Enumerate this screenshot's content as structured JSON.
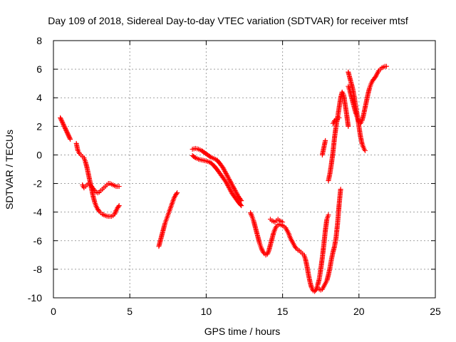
{
  "chart_data": {
    "type": "scatter",
    "title": "Day 109 of 2018, Sidereal Day-to-day VTEC variation (SDTVAR) for receiver mtsf",
    "xlabel": "GPS time / hours",
    "ylabel": "SDTVAR / TECUs",
    "xlim": [
      0,
      25
    ],
    "ylim": [
      -10,
      8
    ],
    "xticks": [
      "0",
      "5",
      "10",
      "15",
      "20",
      "25"
    ],
    "yticks": [
      "-10",
      "-8",
      "-6",
      "-4",
      "-2",
      "0",
      "2",
      "4",
      "6",
      "8"
    ],
    "grid": true,
    "marker": "+",
    "color": "#ff0000",
    "segments": [
      [
        [
          0.45,
          2.6
        ],
        [
          1.1,
          1.1
        ]
      ],
      [
        [
          1.5,
          0.8
        ],
        [
          1.6,
          0.3
        ],
        [
          1.7,
          0.1
        ],
        [
          1.8,
          0.0
        ],
        [
          1.9,
          -0.1
        ],
        [
          2.0,
          -0.2
        ],
        [
          2.1,
          -0.5
        ],
        [
          2.2,
          -0.9
        ],
        [
          2.3,
          -1.4
        ],
        [
          2.4,
          -1.9
        ],
        [
          2.5,
          -2.4
        ],
        [
          2.6,
          -2.9
        ],
        [
          2.7,
          -3.3
        ],
        [
          2.8,
          -3.6
        ],
        [
          2.9,
          -3.8
        ],
        [
          3.0,
          -3.95
        ],
        [
          3.1,
          -4.05
        ],
        [
          3.2,
          -4.15
        ],
        [
          3.3,
          -4.2
        ],
        [
          3.4,
          -4.25
        ],
        [
          3.5,
          -4.28
        ],
        [
          3.6,
          -4.3
        ],
        [
          3.7,
          -4.3
        ],
        [
          3.8,
          -4.3
        ],
        [
          3.9,
          -4.25
        ],
        [
          4.0,
          -4.15
        ],
        [
          4.1,
          -3.9
        ],
        [
          4.2,
          -3.7
        ],
        [
          4.3,
          -3.55
        ]
      ],
      [
        [
          1.9,
          -2.1
        ],
        [
          2.0,
          -2.3
        ],
        [
          2.1,
          -2.2
        ],
        [
          2.2,
          -2.1
        ],
        [
          2.3,
          -2.0
        ],
        [
          2.4,
          -2.1
        ],
        [
          2.5,
          -2.2
        ],
        [
          2.6,
          -2.35
        ],
        [
          2.7,
          -2.5
        ],
        [
          2.8,
          -2.6
        ],
        [
          2.9,
          -2.65
        ],
        [
          3.0,
          -2.6
        ],
        [
          3.1,
          -2.5
        ],
        [
          3.2,
          -2.4
        ],
        [
          3.3,
          -2.3
        ],
        [
          3.4,
          -2.2
        ],
        [
          3.5,
          -2.1
        ],
        [
          3.6,
          -2.0
        ],
        [
          3.7,
          -2.0
        ],
        [
          3.8,
          -2.05
        ],
        [
          3.9,
          -2.1
        ],
        [
          4.0,
          -2.15
        ],
        [
          4.1,
          -2.2
        ],
        [
          4.2,
          -2.2
        ],
        [
          4.3,
          -2.2
        ]
      ],
      [
        [
          6.9,
          -6.4
        ],
        [
          7.0,
          -6.0
        ],
        [
          7.1,
          -5.6
        ],
        [
          7.2,
          -5.2
        ],
        [
          7.3,
          -4.8
        ],
        [
          7.4,
          -4.5
        ],
        [
          7.5,
          -4.2
        ],
        [
          7.6,
          -3.9
        ],
        [
          7.7,
          -3.6
        ],
        [
          7.8,
          -3.3
        ],
        [
          7.9,
          -3.0
        ],
        [
          8.0,
          -2.8
        ],
        [
          8.1,
          -2.65
        ]
      ],
      [
        [
          9.1,
          0.4
        ],
        [
          9.3,
          0.45
        ],
        [
          9.5,
          0.4
        ],
        [
          9.7,
          0.3
        ],
        [
          9.9,
          0.15
        ],
        [
          10.1,
          0.0
        ],
        [
          10.3,
          -0.15
        ],
        [
          10.5,
          -0.25
        ],
        [
          10.7,
          -0.35
        ],
        [
          10.9,
          -0.6
        ],
        [
          11.1,
          -0.9
        ],
        [
          11.3,
          -1.3
        ],
        [
          11.5,
          -1.7
        ],
        [
          11.7,
          -2.1
        ],
        [
          11.9,
          -2.5
        ],
        [
          12.1,
          -2.9
        ],
        [
          12.3,
          -3.2
        ]
      ],
      [
        [
          9.1,
          -0.05
        ],
        [
          9.3,
          -0.2
        ],
        [
          9.5,
          -0.3
        ],
        [
          9.7,
          -0.35
        ],
        [
          9.9,
          -0.4
        ],
        [
          10.1,
          -0.45
        ],
        [
          10.3,
          -0.55
        ],
        [
          10.5,
          -0.75
        ],
        [
          10.7,
          -1.0
        ],
        [
          10.9,
          -1.3
        ],
        [
          11.1,
          -1.6
        ],
        [
          11.3,
          -1.9
        ],
        [
          11.5,
          -2.3
        ],
        [
          11.7,
          -2.7
        ],
        [
          11.9,
          -3.0
        ],
        [
          12.1,
          -3.3
        ],
        [
          12.3,
          -3.55
        ]
      ],
      [
        [
          12.9,
          -4.05
        ],
        [
          13.0,
          -4.3
        ],
        [
          13.1,
          -4.6
        ],
        [
          13.2,
          -5.0
        ],
        [
          13.3,
          -5.4
        ],
        [
          13.4,
          -5.8
        ],
        [
          13.5,
          -6.2
        ],
        [
          13.6,
          -6.5
        ],
        [
          13.7,
          -6.75
        ],
        [
          13.8,
          -6.9
        ],
        [
          13.9,
          -7.0
        ],
        [
          14.0,
          -6.95
        ],
        [
          14.1,
          -6.7
        ],
        [
          14.2,
          -6.3
        ],
        [
          14.3,
          -5.9
        ],
        [
          14.4,
          -5.5
        ],
        [
          14.5,
          -5.2
        ],
        [
          14.6,
          -5.0
        ],
        [
          14.7,
          -4.9
        ],
        [
          14.8,
          -4.85
        ],
        [
          14.9,
          -4.9
        ],
        [
          15.0,
          -4.95
        ],
        [
          15.1,
          -5.0
        ],
        [
          15.2,
          -5.1
        ],
        [
          15.3,
          -5.3
        ],
        [
          15.4,
          -5.5
        ],
        [
          15.5,
          -5.8
        ],
        [
          15.6,
          -6.0
        ],
        [
          15.7,
          -6.2
        ],
        [
          15.8,
          -6.4
        ],
        [
          15.9,
          -6.55
        ],
        [
          16.0,
          -6.65
        ],
        [
          16.1,
          -6.7
        ],
        [
          16.2,
          -6.8
        ],
        [
          16.3,
          -6.9
        ],
        [
          16.4,
          -7.0
        ],
        [
          16.5,
          -7.3
        ],
        [
          16.6,
          -7.8
        ],
        [
          16.7,
          -8.4
        ],
        [
          16.8,
          -8.9
        ],
        [
          16.9,
          -9.3
        ],
        [
          17.0,
          -9.5
        ],
        [
          17.1,
          -9.55
        ],
        [
          17.2,
          -9.4
        ],
        [
          17.3,
          -9.1
        ],
        [
          17.4,
          -8.7
        ],
        [
          17.5,
          -8.0
        ],
        [
          17.6,
          -7.2
        ],
        [
          17.7,
          -6.3
        ],
        [
          17.8,
          -5.3
        ],
        [
          17.9,
          -4.5
        ],
        [
          18.0,
          -4.2
        ]
      ],
      [
        [
          14.2,
          -4.5
        ],
        [
          14.3,
          -4.6
        ],
        [
          14.4,
          -4.65
        ],
        [
          14.5,
          -4.7
        ],
        [
          14.6,
          -4.6
        ],
        [
          14.7,
          -4.5
        ],
        [
          14.8,
          -4.6
        ],
        [
          14.9,
          -4.65
        ],
        [
          15.0,
          -4.7
        ]
      ],
      [
        [
          17.3,
          -9.3
        ],
        [
          17.4,
          -9.4
        ],
        [
          17.5,
          -9.45
        ],
        [
          17.6,
          -9.4
        ],
        [
          17.7,
          -9.2
        ],
        [
          17.8,
          -9.0
        ],
        [
          17.9,
          -8.8
        ],
        [
          18.0,
          -8.4
        ],
        [
          18.1,
          -7.9
        ],
        [
          18.2,
          -7.3
        ],
        [
          18.3,
          -6.8
        ],
        [
          18.4,
          -6.4
        ],
        [
          18.5,
          -5.8
        ],
        [
          18.6,
          -4.8
        ],
        [
          18.7,
          -3.5
        ],
        [
          18.8,
          -2.4
        ]
      ],
      [
        [
          17.6,
          0.0
        ],
        [
          17.7,
          0.5
        ],
        [
          17.8,
          1.0
        ]
      ],
      [
        [
          18.0,
          -1.8
        ],
        [
          18.1,
          -1.3
        ],
        [
          18.2,
          -0.6
        ],
        [
          18.3,
          0.2
        ],
        [
          18.4,
          1.2
        ],
        [
          18.5,
          2.0
        ],
        [
          18.6,
          2.6
        ],
        [
          18.7,
          3.3
        ],
        [
          18.8,
          4.0
        ],
        [
          18.9,
          4.4
        ],
        [
          19.0,
          4.2
        ],
        [
          19.1,
          3.5
        ],
        [
          19.2,
          2.8
        ],
        [
          19.3,
          2.0
        ]
      ],
      [
        [
          18.3,
          2.2
        ],
        [
          18.4,
          2.4
        ],
        [
          18.5,
          2.5
        ],
        [
          18.6,
          2.5
        ],
        [
          18.7,
          2.6
        ]
      ],
      [
        [
          19.3,
          5.8
        ],
        [
          19.4,
          5.4
        ],
        [
          19.5,
          5.0
        ],
        [
          19.6,
          4.6
        ],
        [
          19.7,
          4.0
        ],
        [
          19.8,
          3.3
        ],
        [
          19.9,
          2.7
        ],
        [
          20.0,
          2.0
        ],
        [
          20.1,
          1.3
        ],
        [
          20.2,
          0.8
        ],
        [
          20.3,
          0.5
        ],
        [
          20.4,
          0.3
        ]
      ],
      [
        [
          19.3,
          4.8
        ],
        [
          19.4,
          4.5
        ],
        [
          19.5,
          4.1
        ],
        [
          19.6,
          3.7
        ],
        [
          19.7,
          3.3
        ],
        [
          19.8,
          2.9
        ],
        [
          19.9,
          2.6
        ],
        [
          20.0,
          2.3
        ],
        [
          20.1,
          2.2
        ],
        [
          20.2,
          2.4
        ],
        [
          20.3,
          2.8
        ],
        [
          20.4,
          3.3
        ],
        [
          20.5,
          3.8
        ],
        [
          20.6,
          4.3
        ],
        [
          20.7,
          4.7
        ],
        [
          20.8,
          5.0
        ],
        [
          20.9,
          5.2
        ],
        [
          21.0,
          5.35
        ],
        [
          21.1,
          5.5
        ],
        [
          21.2,
          5.7
        ],
        [
          21.3,
          5.9
        ],
        [
          21.4,
          6.0
        ],
        [
          21.5,
          6.1
        ],
        [
          21.6,
          6.15
        ],
        [
          21.7,
          6.2
        ],
        [
          21.8,
          6.2
        ]
      ]
    ]
  }
}
